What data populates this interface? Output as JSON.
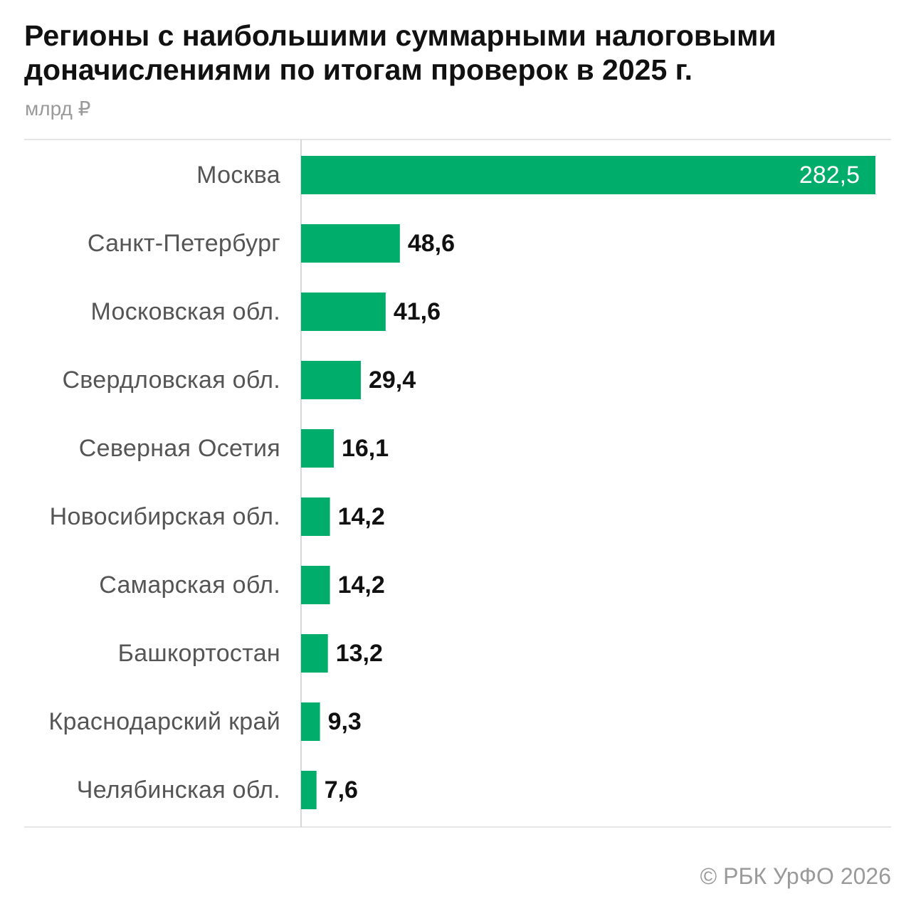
{
  "header": {
    "title": "Регионы с наибольшими суммарными налоговыми доначислениями по итогам проверок в 2025 г.",
    "unit": "млрд ₽"
  },
  "footer": {
    "source": "© РБК УрФО 2026"
  },
  "colors": {
    "bar": "#00ad6a",
    "separator": "#dddddd",
    "axis": "#cccccc"
  },
  "chart_data": {
    "type": "bar",
    "orientation": "horizontal",
    "title": "Регионы с наибольшими суммарными налоговыми доначислениями по итогам проверок в 2025 г.",
    "subtitle": "млрд ₽",
    "categories": [
      "Москва",
      "Санкт-Петербург",
      "Московская обл.",
      "Свердловская обл.",
      "Северная Осетия",
      "Новосибирская обл.",
      "Самарская обл.",
      "Башкортостан",
      "Краснодарский край",
      "Челябинская обл."
    ],
    "values": [
      282.5,
      48.6,
      41.6,
      29.4,
      16.1,
      14.2,
      14.2,
      13.2,
      9.3,
      7.6
    ],
    "value_labels": [
      "282,5",
      "48,6",
      "41,6",
      "29,4",
      "16,1",
      "14,2",
      "14,2",
      "13,2",
      "9,3",
      "7,6"
    ],
    "xlim": [
      0,
      282.5
    ],
    "grid": false,
    "legend": "none"
  }
}
